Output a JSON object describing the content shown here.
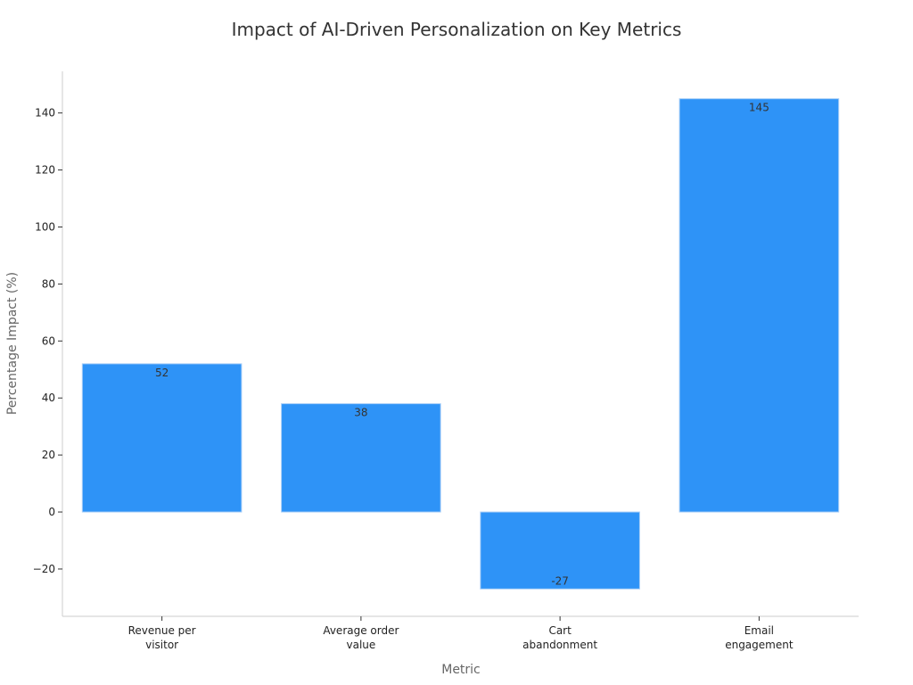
{
  "chart_data": {
    "type": "bar",
    "title": "Impact of AI-Driven Personalization on Key Metrics",
    "xlabel": "Metric",
    "ylabel": "Percentage Impact (%)",
    "categories": [
      [
        "Revenue per",
        "visitor"
      ],
      [
        "Average order",
        "value"
      ],
      [
        "Cart",
        "abandonment"
      ],
      [
        "Email",
        "engagement"
      ]
    ],
    "values": [
      52,
      38,
      -27,
      145
    ],
    "data_labels": [
      "52",
      "38",
      "-27",
      "145"
    ],
    "yticks": [
      -20,
      0,
      20,
      40,
      60,
      80,
      100,
      120,
      140
    ],
    "ytick_labels": [
      "−20",
      "0",
      "20",
      "40",
      "60",
      "80",
      "100",
      "120",
      "140"
    ],
    "ylim": [
      -36.6,
      154.6
    ],
    "grid": false,
    "legend": "none",
    "bar_color": "#2e93f7"
  }
}
